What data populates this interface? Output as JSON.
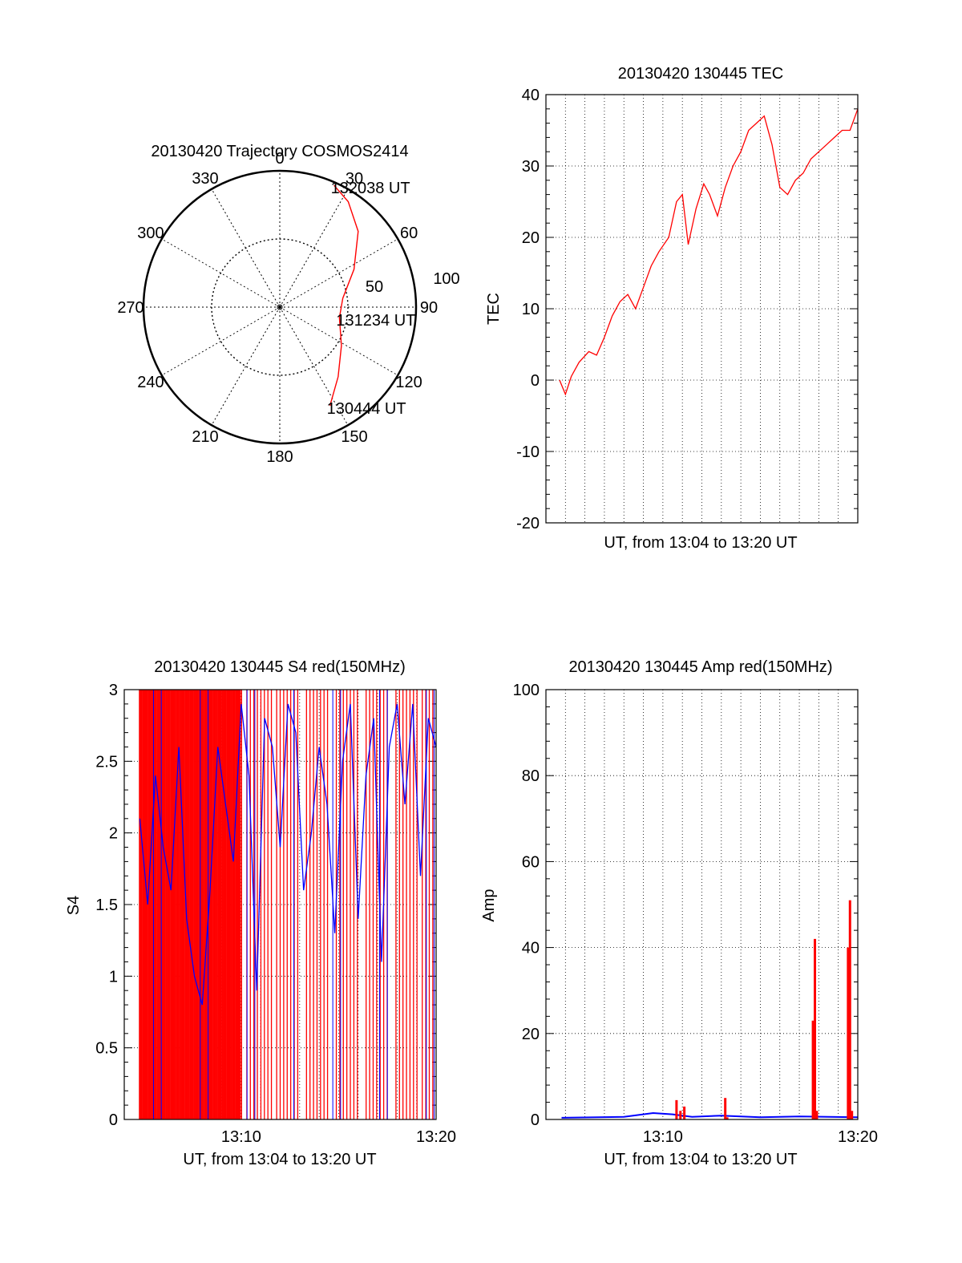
{
  "chart_data": [
    {
      "type": "polar",
      "title": "20130420 Trajectory COSMOS2414",
      "azimuth_labels": [
        "0",
        "30",
        "60",
        "90",
        "120",
        "150",
        "180",
        "210",
        "240",
        "270",
        "300",
        "330"
      ],
      "radius_labels": [
        "50",
        "100"
      ],
      "series": [
        {
          "color": "#ff0000",
          "points": [
            {
              "az": 153,
              "el": 17
            },
            {
              "az": 140,
              "el": 30
            },
            {
              "az": 122,
              "el": 42
            },
            {
              "az": 100,
              "el": 50
            },
            {
              "az": 82,
              "el": 48
            },
            {
              "az": 63,
              "el": 35
            },
            {
              "az": 46,
              "el": 18
            },
            {
              "az": 33,
              "el": 7
            },
            {
              "az": 24,
              "el": 2
            }
          ]
        }
      ],
      "annotations": [
        {
          "text": "130444 UT",
          "az": 153,
          "el": 17
        },
        {
          "text": "131234 UT",
          "az": 100,
          "el": 50
        },
        {
          "text": "132038 UT",
          "az": 24,
          "el": 2
        }
      ],
      "grid": true
    },
    {
      "type": "line",
      "title": "20130420 130445 TEC",
      "xlabel": "UT, from 13:04 to 13:20 UT",
      "ylabel": "TEC",
      "xlim": [
        0,
        16
      ],
      "ylim": [
        -20,
        40
      ],
      "yticks": [
        "-20",
        "-10",
        "0",
        "10",
        "20",
        "30",
        "40"
      ],
      "grid": true,
      "series": [
        {
          "color": "#ff0000",
          "x": [
            0.7,
            1.0,
            1.3,
            1.7,
            2.2,
            2.6,
            3.0,
            3.4,
            3.8,
            4.2,
            4.6,
            5.0,
            5.4,
            5.8,
            6.3,
            6.7,
            7.0,
            7.3,
            7.7,
            8.1,
            8.4,
            8.8,
            9.2,
            9.6,
            10.0,
            10.4,
            10.8,
            11.2,
            11.6,
            12.0,
            12.4,
            12.8,
            13.2,
            13.6,
            14.0,
            14.4,
            14.8,
            15.2,
            15.6,
            16.0
          ],
          "y": [
            0,
            -2,
            0.5,
            2.5,
            4,
            3.5,
            6,
            9,
            11,
            12,
            10,
            13,
            16,
            18,
            20,
            25,
            26,
            19,
            24,
            27.5,
            26,
            23,
            27,
            30,
            32,
            35,
            36,
            37,
            33,
            27,
            26,
            28,
            29,
            31,
            32,
            33,
            34,
            35,
            35,
            38
          ]
        }
      ]
    },
    {
      "type": "line",
      "title": "20130420 130445 S4 red(150MHz)",
      "xlabel": "UT, from 13:04 to 13:20 UT",
      "ylabel": "S4",
      "xlim": [
        0,
        16
      ],
      "ylim": [
        0,
        3
      ],
      "xticks": [
        "13:10",
        "13:20"
      ],
      "yticks": [
        "0",
        "0.5",
        "1",
        "1.5",
        "2",
        "2.5",
        "3"
      ],
      "grid": true,
      "series": [
        {
          "color": "#ff0000",
          "x": [
            0.8,
            16
          ],
          "y": [
            0,
            3
          ]
        },
        {
          "color": "#0000ff",
          "x": [
            0.8,
            1.2,
            1.6,
            2.0,
            2.4,
            2.8,
            3.2,
            3.6,
            4.0,
            4.4,
            4.8,
            5.2,
            5.6,
            6.0,
            6.4,
            6.8,
            7.2,
            7.6,
            8.0,
            8.4,
            8.8,
            9.2,
            9.6,
            10.0,
            10.4,
            10.8,
            11.2,
            11.6,
            12.0,
            12.4,
            12.8,
            13.2,
            13.6,
            14.0,
            14.4,
            14.8,
            15.2,
            15.6,
            16.0
          ],
          "y": [
            2.1,
            1.5,
            2.4,
            1.9,
            1.6,
            2.6,
            1.4,
            1.0,
            0.8,
            1.6,
            2.6,
            2.2,
            1.8,
            2.9,
            2.4,
            0.9,
            2.8,
            2.6,
            1.9,
            2.9,
            2.7,
            1.6,
            2.0,
            2.6,
            2.2,
            1.3,
            2.5,
            2.9,
            1.4,
            2.4,
            2.8,
            1.1,
            2.6,
            2.9,
            2.2,
            2.9,
            1.7,
            2.8,
            2.6
          ]
        }
      ]
    },
    {
      "type": "line",
      "title": "20130420 130445 Amp red(150MHz)",
      "ylabel": "Amp",
      "xlabel": "UT, from 13:04 to 13:20 UT",
      "xlim": [
        0,
        16
      ],
      "ylim": [
        0,
        100
      ],
      "xticks": [
        "13:10",
        "13:20"
      ],
      "yticks": [
        "0",
        "20",
        "40",
        "60",
        "80",
        "100"
      ],
      "grid": true,
      "series": [
        {
          "color": "#ff0000",
          "x": [
            6.7,
            6.9,
            7.1,
            9.2,
            9.3,
            13.7,
            13.8,
            13.9,
            15.5,
            15.6,
            15.7
          ],
          "y": [
            4.5,
            2,
            3,
            5,
            0.5,
            23,
            42,
            2,
            40,
            51,
            2
          ]
        },
        {
          "color": "#0000ff",
          "x": [
            0.8,
            4,
            5.5,
            6.5,
            7.5,
            9,
            11,
            13,
            14.5,
            16
          ],
          "y": [
            0.4,
            0.6,
            1.5,
            1.2,
            0.6,
            0.9,
            0.5,
            0.7,
            0.6,
            0.5
          ]
        }
      ]
    }
  ]
}
